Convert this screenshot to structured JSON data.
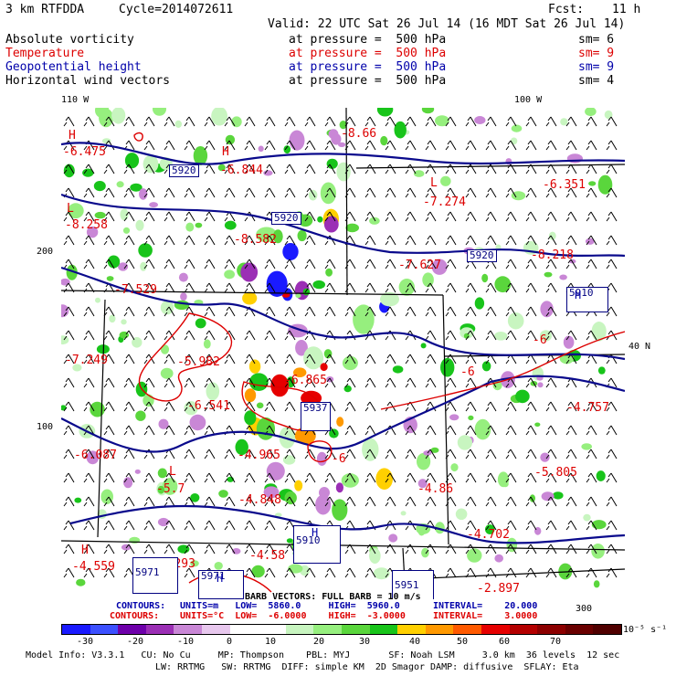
{
  "header": {
    "model": "3 km RTFDDA",
    "cycle": "Cycle=2014072611",
    "fcst_label": "Fcst:",
    "fcst_value": "11 h",
    "valid": "Valid: 22 UTC Sat 26 Jul 14 (16 MDT Sat 26 Jul 14)"
  },
  "fields": [
    {
      "name": "Absolute vorticity",
      "level": "at pressure =  500 hPa",
      "sm": "sm= 6",
      "color": "#000000"
    },
    {
      "name": "Temperature",
      "level": "at pressure =  500 hPa",
      "sm": "sm= 9",
      "color": "#dd0000"
    },
    {
      "name": "Geopotential height",
      "level": "at pressure =  500 hPa",
      "sm": "sm= 9",
      "color": "#0000aa"
    },
    {
      "name": "Horizontal wind vectors",
      "level": "at pressure =  500 hPa",
      "sm": "sm= 4",
      "color": "#000000"
    }
  ],
  "map": {
    "lon_labels": [
      "110 W",
      "100 W"
    ],
    "lat_label": "40 N",
    "grid_labels_left": [
      "200",
      "100"
    ],
    "grid_labels_bottom": [
      "100",
      "200",
      "300"
    ],
    "temperature_labels": [
      "-6.475",
      "-6.844",
      "-8.66",
      "-6.351",
      "-7.274",
      "-8.258",
      "-8.582",
      "-7.627",
      "-8.218",
      "-7.529",
      "-7.249",
      "-5.982",
      "-6.541",
      "-6.865",
      "-6",
      "-6",
      "-4.757",
      "-6.087",
      "-4.965",
      "-6",
      "-5.805",
      "-5.7",
      "-4.848",
      "-4.86",
      "-4.702",
      "-4.559",
      "-4.293",
      "-4.58",
      "-2.897"
    ],
    "height_labels": [
      "5920",
      "5920",
      "5920",
      "5910",
      "5937",
      "5971",
      "5971",
      "5910",
      "5951"
    ],
    "extrema_marks": [
      "H",
      "L"
    ]
  },
  "footer": {
    "contours1_label": "CONTOURS:",
    "contours1": "UNITS=m   LOW=  5860.0     HIGH=  5960.0      INTERVAL=    20.000",
    "contours2_label": "CONTOURS:",
    "contours2": "UNITS=°C  LOW=  -6.0000    HIGH=  -3.0000     INTERVAL=    3.0000",
    "barb_label": "BARB VECTORS: FULL BARB = 10 m/s",
    "scale_ticks": [
      "-30",
      "-20",
      "-10",
      "0",
      "10",
      "20",
      "30",
      "40",
      "50",
      "60",
      "70"
    ],
    "scale_units": "10⁻⁵ s⁻¹",
    "model_info_1": "Model Info: V3.3.1   CU: No Cu     MP: Thompson    PBL: MYJ       SF: Noah LSM     3.0 km  36 levels  12 sec",
    "model_info_2": "LW: RRTMG   SW: RRTMG  DIFF: simple KM  2D Smagor DAMP: diffusive  SFLAY: Eta"
  },
  "legend_colors": [
    "#1a1aff",
    "#3c50ff",
    "#6e00aa",
    "#9b2fb5",
    "#c987d6",
    "#e8c8ee",
    "#ffffff",
    "#ffffff",
    "#c8f5c0",
    "#96ef7e",
    "#5ad63c",
    "#18c41a",
    "#ffd000",
    "#ff9900",
    "#ff5a00",
    "#e60000",
    "#b40000",
    "#8c0000",
    "#6a0000",
    "#500000"
  ]
}
